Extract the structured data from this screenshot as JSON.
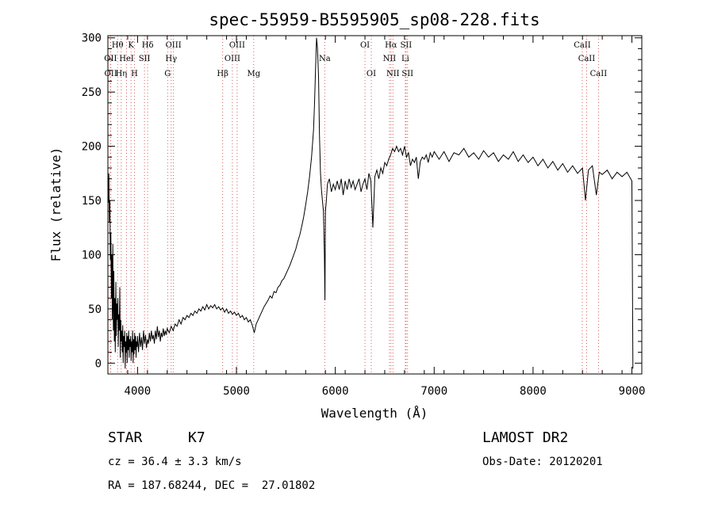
{
  "chart_data": {
    "type": "line",
    "title": "spec-55959-B5595905_sp08-228.fits",
    "xlabel": "Wavelength (Å)",
    "ylabel": "Flux (relative)",
    "xlim": [
      3700,
      9100
    ],
    "ylim": [
      -10,
      302
    ],
    "xticks": [
      4000,
      5000,
      6000,
      7000,
      8000,
      9000
    ],
    "yticks": [
      0,
      50,
      100,
      150,
      200,
      250,
      300
    ],
    "grid": false,
    "series": [
      {
        "values": [
          [
            3700,
            160
          ],
          [
            3705,
            148
          ],
          [
            3710,
            175
          ],
          [
            3715,
            130
          ],
          [
            3720,
            150
          ],
          [
            3725,
            95
          ],
          [
            3730,
            120
          ],
          [
            3735,
            60
          ],
          [
            3740,
            100
          ],
          [
            3745,
            40
          ],
          [
            3750,
            110
          ],
          [
            3755,
            30
          ],
          [
            3760,
            85
          ],
          [
            3765,
            20
          ],
          [
            3770,
            60
          ],
          [
            3775,
            10
          ],
          [
            3780,
            75
          ],
          [
            3785,
            25
          ],
          [
            3790,
            55
          ],
          [
            3795,
            40
          ],
          [
            3800,
            60
          ],
          [
            3805,
            15
          ],
          [
            3810,
            45
          ],
          [
            3815,
            30
          ],
          [
            3820,
            70
          ],
          [
            3825,
            5
          ],
          [
            3830,
            40
          ],
          [
            3835,
            20
          ],
          [
            3840,
            30
          ],
          [
            3845,
            10
          ],
          [
            3850,
            35
          ],
          [
            3855,
            0
          ],
          [
            3860,
            25
          ],
          [
            3865,
            15
          ],
          [
            3870,
            30
          ],
          [
            3875,
            -5
          ],
          [
            3880,
            20
          ],
          [
            3885,
            10
          ],
          [
            3890,
            28
          ],
          [
            3895,
            0
          ],
          [
            3900,
            25
          ],
          [
            3905,
            12
          ],
          [
            3910,
            30
          ],
          [
            3915,
            5
          ],
          [
            3920,
            22
          ],
          [
            3925,
            15
          ],
          [
            3930,
            25
          ],
          [
            3935,
            2
          ],
          [
            3940,
            20
          ],
          [
            3945,
            10
          ],
          [
            3950,
            30
          ],
          [
            3955,
            0
          ],
          [
            3960,
            22
          ],
          [
            3965,
            8
          ],
          [
            3970,
            28
          ],
          [
            3975,
            12
          ],
          [
            3980,
            25
          ],
          [
            3985,
            5
          ],
          [
            3990,
            20
          ],
          [
            3995,
            15
          ],
          [
            4000,
            25
          ],
          [
            4010,
            10
          ],
          [
            4020,
            28
          ],
          [
            4030,
            15
          ],
          [
            4040,
            24
          ],
          [
            4050,
            12
          ],
          [
            4060,
            30
          ],
          [
            4070,
            18
          ],
          [
            4080,
            26
          ],
          [
            4090,
            14
          ],
          [
            4100,
            22
          ],
          [
            4110,
            18
          ],
          [
            4120,
            28
          ],
          [
            4130,
            20
          ],
          [
            4140,
            30
          ],
          [
            4150,
            22
          ],
          [
            4160,
            26
          ],
          [
            4170,
            18
          ],
          [
            4180,
            30
          ],
          [
            4190,
            22
          ],
          [
            4200,
            34
          ],
          [
            4210,
            24
          ],
          [
            4220,
            30
          ],
          [
            4230,
            20
          ],
          [
            4240,
            28
          ],
          [
            4250,
            24
          ],
          [
            4260,
            32
          ],
          [
            4270,
            25
          ],
          [
            4280,
            30
          ],
          [
            4290,
            26
          ],
          [
            4300,
            32
          ],
          [
            4320,
            28
          ],
          [
            4340,
            34
          ],
          [
            4360,
            30
          ],
          [
            4380,
            36
          ],
          [
            4400,
            34
          ],
          [
            4420,
            40
          ],
          [
            4440,
            36
          ],
          [
            4460,
            42
          ],
          [
            4480,
            40
          ],
          [
            4500,
            44
          ],
          [
            4520,
            42
          ],
          [
            4540,
            46
          ],
          [
            4560,
            44
          ],
          [
            4580,
            48
          ],
          [
            4600,
            46
          ],
          [
            4620,
            50
          ],
          [
            4640,
            48
          ],
          [
            4660,
            52
          ],
          [
            4680,
            49
          ],
          [
            4700,
            54
          ],
          [
            4720,
            50
          ],
          [
            4740,
            53
          ],
          [
            4760,
            51
          ],
          [
            4780,
            54
          ],
          [
            4800,
            50
          ],
          [
            4820,
            52
          ],
          [
            4840,
            49
          ],
          [
            4860,
            51
          ],
          [
            4880,
            47
          ],
          [
            4900,
            50
          ],
          [
            4920,
            46
          ],
          [
            4940,
            48
          ],
          [
            4960,
            45
          ],
          [
            4980,
            47
          ],
          [
            5000,
            44
          ],
          [
            5020,
            46
          ],
          [
            5040,
            42
          ],
          [
            5060,
            44
          ],
          [
            5080,
            40
          ],
          [
            5100,
            42
          ],
          [
            5120,
            38
          ],
          [
            5140,
            40
          ],
          [
            5160,
            35
          ],
          [
            5180,
            28
          ],
          [
            5200,
            36
          ],
          [
            5220,
            40
          ],
          [
            5240,
            44
          ],
          [
            5260,
            48
          ],
          [
            5280,
            52
          ],
          [
            5300,
            55
          ],
          [
            5320,
            58
          ],
          [
            5340,
            62
          ],
          [
            5360,
            60
          ],
          [
            5380,
            66
          ],
          [
            5400,
            65
          ],
          [
            5420,
            70
          ],
          [
            5440,
            72
          ],
          [
            5460,
            76
          ],
          [
            5480,
            78
          ],
          [
            5500,
            82
          ],
          [
            5520,
            86
          ],
          [
            5540,
            90
          ],
          [
            5560,
            95
          ],
          [
            5580,
            100
          ],
          [
            5600,
            105
          ],
          [
            5620,
            112
          ],
          [
            5640,
            118
          ],
          [
            5660,
            126
          ],
          [
            5680,
            135
          ],
          [
            5700,
            146
          ],
          [
            5720,
            158
          ],
          [
            5740,
            172
          ],
          [
            5760,
            190
          ],
          [
            5780,
            215
          ],
          [
            5790,
            240
          ],
          [
            5800,
            270
          ],
          [
            5810,
            300
          ],
          [
            5820,
            290
          ],
          [
            5830,
            265
          ],
          [
            5840,
            210
          ],
          [
            5850,
            175
          ],
          [
            5860,
            160
          ],
          [
            5870,
            150
          ],
          [
            5880,
            140
          ],
          [
            5890,
            100
          ],
          [
            5895,
            58
          ],
          [
            5900,
            140
          ],
          [
            5910,
            150
          ],
          [
            5920,
            165
          ],
          [
            5940,
            170
          ],
          [
            5960,
            158
          ],
          [
            5980,
            165
          ],
          [
            6000,
            160
          ],
          [
            6020,
            168
          ],
          [
            6040,
            160
          ],
          [
            6060,
            170
          ],
          [
            6080,
            155
          ],
          [
            6100,
            168
          ],
          [
            6120,
            160
          ],
          [
            6140,
            170
          ],
          [
            6160,
            162
          ],
          [
            6180,
            168
          ],
          [
            6200,
            160
          ],
          [
            6220,
            165
          ],
          [
            6240,
            170
          ],
          [
            6260,
            158
          ],
          [
            6280,
            165
          ],
          [
            6300,
            170
          ],
          [
            6320,
            160
          ],
          [
            6340,
            175
          ],
          [
            6360,
            168
          ],
          [
            6380,
            125
          ],
          [
            6400,
            172
          ],
          [
            6420,
            178
          ],
          [
            6440,
            170
          ],
          [
            6460,
            180
          ],
          [
            6480,
            175
          ],
          [
            6500,
            185
          ],
          [
            6520,
            182
          ],
          [
            6540,
            188
          ],
          [
            6560,
            192
          ],
          [
            6580,
            198
          ],
          [
            6600,
            195
          ],
          [
            6620,
            200
          ],
          [
            6640,
            195
          ],
          [
            6660,
            198
          ],
          [
            6680,
            192
          ],
          [
            6700,
            200
          ],
          [
            6720,
            190
          ],
          [
            6740,
            194
          ],
          [
            6760,
            182
          ],
          [
            6780,
            188
          ],
          [
            6800,
            185
          ],
          [
            6820,
            190
          ],
          [
            6840,
            170
          ],
          [
            6860,
            186
          ],
          [
            6880,
            190
          ],
          [
            6900,
            188
          ],
          [
            6920,
            192
          ],
          [
            6940,
            185
          ],
          [
            6960,
            194
          ],
          [
            6980,
            190
          ],
          [
            7000,
            195
          ],
          [
            7050,
            188
          ],
          [
            7100,
            195
          ],
          [
            7150,
            186
          ],
          [
            7200,
            194
          ],
          [
            7250,
            192
          ],
          [
            7300,
            198
          ],
          [
            7350,
            190
          ],
          [
            7400,
            194
          ],
          [
            7450,
            188
          ],
          [
            7500,
            196
          ],
          [
            7550,
            190
          ],
          [
            7600,
            194
          ],
          [
            7650,
            186
          ],
          [
            7700,
            192
          ],
          [
            7750,
            188
          ],
          [
            7800,
            195
          ],
          [
            7850,
            186
          ],
          [
            7900,
            192
          ],
          [
            7950,
            185
          ],
          [
            8000,
            190
          ],
          [
            8050,
            182
          ],
          [
            8100,
            188
          ],
          [
            8150,
            180
          ],
          [
            8200,
            186
          ],
          [
            8250,
            178
          ],
          [
            8300,
            184
          ],
          [
            8350,
            176
          ],
          [
            8400,
            182
          ],
          [
            8450,
            175
          ],
          [
            8500,
            180
          ],
          [
            8530,
            150
          ],
          [
            8560,
            178
          ],
          [
            8600,
            182
          ],
          [
            8640,
            155
          ],
          [
            8670,
            176
          ],
          [
            8700,
            174
          ],
          [
            8750,
            178
          ],
          [
            8800,
            170
          ],
          [
            8850,
            176
          ],
          [
            8900,
            172
          ],
          [
            8950,
            176
          ],
          [
            9000,
            168
          ],
          [
            9010,
            -5
          ]
        ]
      }
    ],
    "line_markers": [
      {
        "label": "Hθ",
        "x": 3798,
        "row": 0
      },
      {
        "label": "K",
        "x": 3934,
        "row": 0
      },
      {
        "label": "Hδ",
        "x": 4102,
        "row": 0
      },
      {
        "label": "OIII",
        "x": 4363,
        "row": 0
      },
      {
        "label": "OIII",
        "x": 5007,
        "row": 0
      },
      {
        "label": "OI",
        "x": 6300,
        "row": 0
      },
      {
        "label": "Hα",
        "x": 6563,
        "row": 0
      },
      {
        "label": "SII",
        "x": 6716,
        "row": 0
      },
      {
        "label": "CaII",
        "x": 8498,
        "row": 0
      },
      {
        "label": "OII",
        "x": 3727,
        "row": 1
      },
      {
        "label": "HeI",
        "x": 3889,
        "row": 1
      },
      {
        "label": "SII",
        "x": 4070,
        "row": 1
      },
      {
        "label": "Hγ",
        "x": 4340,
        "row": 1
      },
      {
        "label": "OIII",
        "x": 4959,
        "row": 1
      },
      {
        "label": "Na",
        "x": 5893,
        "row": 1
      },
      {
        "label": "NII",
        "x": 6548,
        "row": 1
      },
      {
        "label": "Li",
        "x": 6708,
        "row": 1
      },
      {
        "label": "CaII",
        "x": 8542,
        "row": 1
      },
      {
        "label": "OII",
        "x": 3729,
        "row": 2
      },
      {
        "label": "Hη",
        "x": 3835,
        "row": 2
      },
      {
        "label": "H",
        "x": 3969,
        "row": 2
      },
      {
        "label": "G",
        "x": 4304,
        "row": 2
      },
      {
        "label": "Hβ",
        "x": 4861,
        "row": 2
      },
      {
        "label": "Mg",
        "x": 5175,
        "row": 2
      },
      {
        "label": "OI",
        "x": 6364,
        "row": 2
      },
      {
        "label": "NII",
        "x": 6583,
        "row": 2
      },
      {
        "label": "SII",
        "x": 6731,
        "row": 2
      },
      {
        "label": "CaII",
        "x": 8662,
        "row": 2
      }
    ]
  },
  "info": {
    "class": "STAR",
    "subclass": "K7",
    "cz": "cz = 36.4 ± 3.3 km/s",
    "radec": "RA = 187.68244, DEC =  27.01802",
    "survey": "LAMOST DR2",
    "obsdate": "Obs-Date: 20120201"
  }
}
